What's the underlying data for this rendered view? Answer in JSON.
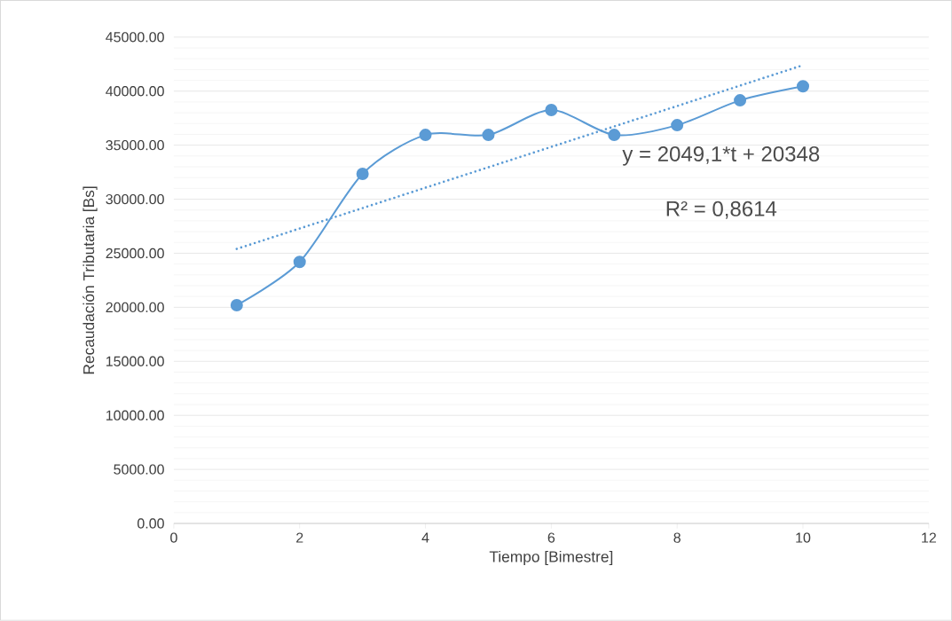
{
  "chart_data": {
    "type": "line",
    "xlabel": "Tiempo [Bimestre]",
    "ylabel": "Recaudación Tributaria [Bs]",
    "x": [
      1,
      2,
      3,
      4,
      5,
      6,
      7,
      8,
      9,
      10
    ],
    "series": [
      {
        "color": "#5b9bd5",
        "values": [
          20200,
          24200,
          32350,
          35950,
          35950,
          38250,
          35950,
          36850,
          39150,
          40450
        ],
        "marker": "circle",
        "line_style": "solid"
      },
      {
        "type": "line",
        "color": "#5b9bd5",
        "x": [
          1,
          10
        ],
        "values": [
          25400,
          42400
        ],
        "marker": "none",
        "line_style": "dotted"
      }
    ],
    "xlim": [
      0,
      12
    ],
    "xticks": [
      0,
      2,
      4,
      6,
      8,
      10,
      12
    ],
    "ylim": [
      0,
      45000
    ],
    "yticks": [
      {
        "value": 0,
        "label": "0.00"
      },
      {
        "value": 5000,
        "label": "5000.00"
      },
      {
        "value": 10000,
        "label": "10000.00"
      },
      {
        "value": 15000,
        "label": "15000.00"
      },
      {
        "value": 20000,
        "label": "20000.00"
      },
      {
        "value": 25000,
        "label": "25000.00"
      },
      {
        "value": 30000,
        "label": "30000.00"
      },
      {
        "value": 35000,
        "label": "35000.00"
      },
      {
        "value": 40000,
        "label": "40000.00"
      },
      {
        "value": 45000,
        "label": "45000.00"
      }
    ],
    "grid": "y",
    "annotations": [
      "y = 2049,1*t + 20348",
      "R² = 0,8614"
    ]
  }
}
